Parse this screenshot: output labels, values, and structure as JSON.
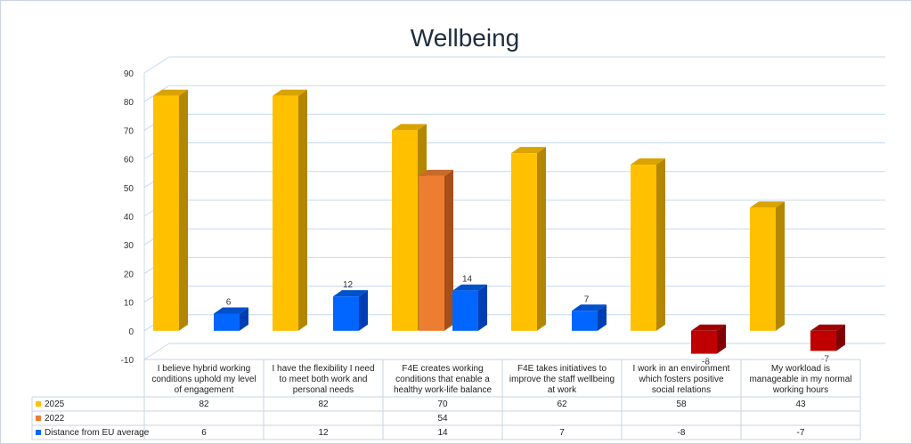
{
  "chart_data": {
    "type": "bar",
    "title": "Wellbeing",
    "ylim": [
      -10,
      90
    ],
    "yticks": [
      -10,
      0,
      10,
      20,
      30,
      40,
      50,
      60,
      70,
      80,
      90
    ],
    "categories": [
      [
        "I believe hybrid working",
        "conditions uphold my level",
        "of engagement"
      ],
      [
        "I  have the flexibility I need",
        "to meet both work and",
        "personal needs"
      ],
      [
        "F4E creates working",
        "conditions that enable a",
        "healthy work-life balance"
      ],
      [
        "F4E takes initiatives to",
        "improve the staff wellbeing",
        "at work"
      ],
      [
        "I work in an environment",
        "which fosters positive",
        "social relations"
      ],
      [
        "My workload is",
        "manageable in my normal",
        "working hours"
      ]
    ],
    "series": [
      {
        "name": "2025",
        "values": [
          82,
          82,
          70,
          62,
          58,
          43
        ],
        "color": "#ffc000",
        "side": "#b38600",
        "top": "#d9a300"
      },
      {
        "name": "2022",
        "values": [
          null,
          null,
          54,
          null,
          null,
          null
        ],
        "color": "#ed7d31",
        "side": "#a84e18",
        "top": "#c96a2a"
      },
      {
        "name": "Distance from EU average",
        "values": [
          6,
          12,
          14,
          7,
          -8,
          -7
        ],
        "color": "#0066ff",
        "side": "#003fb3",
        "top": "#0050cc",
        "neg_color": "#c00000",
        "neg_side": "#800000",
        "neg_top": "#a00000"
      }
    ],
    "data_labels": [
      "6",
      "12",
      "14",
      "7",
      "-8",
      "-7"
    ],
    "table": {
      "rows": [
        {
          "legend": "2025",
          "cells": [
            "82",
            "82",
            "70",
            "62",
            "58",
            "43"
          ]
        },
        {
          "legend": "2022",
          "cells": [
            "",
            "",
            "54",
            "",
            "",
            ""
          ]
        },
        {
          "legend": "Distance from EU average",
          "cells": [
            "6",
            "12",
            "14",
            "7",
            "-8",
            "-7"
          ]
        }
      ]
    }
  }
}
